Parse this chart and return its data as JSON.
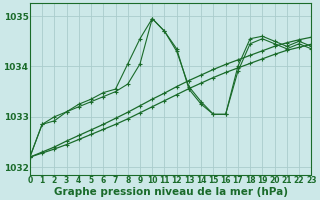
{
  "bg_color": "#cce8e8",
  "grid_color": "#aacccc",
  "line_color": "#1a6b2a",
  "xlabel": "Graphe pression niveau de la mer (hPa)",
  "xlabel_fontsize": 7.5,
  "xtick_fontsize": 5.5,
  "ytick_fontsize": 6.5,
  "xlim": [
    0,
    23
  ],
  "ylim": [
    1031.85,
    1035.25
  ],
  "yticks": [
    1032,
    1033,
    1034,
    1035
  ],
  "xticks": [
    0,
    1,
    2,
    3,
    4,
    5,
    6,
    7,
    8,
    9,
    10,
    11,
    12,
    13,
    14,
    15,
    16,
    17,
    18,
    19,
    20,
    21,
    22,
    23
  ],
  "trend1": [
    1032.2,
    1032.28,
    1032.36,
    1032.45,
    1032.55,
    1032.65,
    1032.75,
    1032.85,
    1032.96,
    1033.08,
    1033.2,
    1033.32,
    1033.44,
    1033.56,
    1033.67,
    1033.78,
    1033.88,
    1033.97,
    1034.06,
    1034.15,
    1034.24,
    1034.32,
    1034.38,
    1034.44
  ],
  "trend2": [
    1032.2,
    1032.3,
    1032.4,
    1032.52,
    1032.63,
    1032.74,
    1032.85,
    1032.97,
    1033.09,
    1033.22,
    1033.35,
    1033.47,
    1033.6,
    1033.72,
    1033.83,
    1033.94,
    1034.04,
    1034.13,
    1034.22,
    1034.31,
    1034.4,
    1034.47,
    1034.53,
    1034.58
  ],
  "wiggle1": [
    1032.2,
    1032.85,
    1032.92,
    1033.1,
    1033.25,
    1033.35,
    1033.48,
    1033.55,
    1034.05,
    1034.55,
    1034.95,
    1034.7,
    1034.35,
    1033.55,
    1033.25,
    1033.05,
    1033.05,
    1033.9,
    1034.45,
    1034.55,
    1034.45,
    1034.35,
    1034.45,
    1034.35
  ],
  "wiggle2": [
    1032.2,
    1032.85,
    1033.0,
    1033.1,
    1033.2,
    1033.3,
    1033.4,
    1033.5,
    1033.65,
    1034.05,
    1034.95,
    1034.7,
    1034.3,
    1033.6,
    1033.3,
    1033.05,
    1033.05,
    1034.0,
    1034.55,
    1034.6,
    1034.5,
    1034.4,
    1034.5,
    1034.4
  ]
}
